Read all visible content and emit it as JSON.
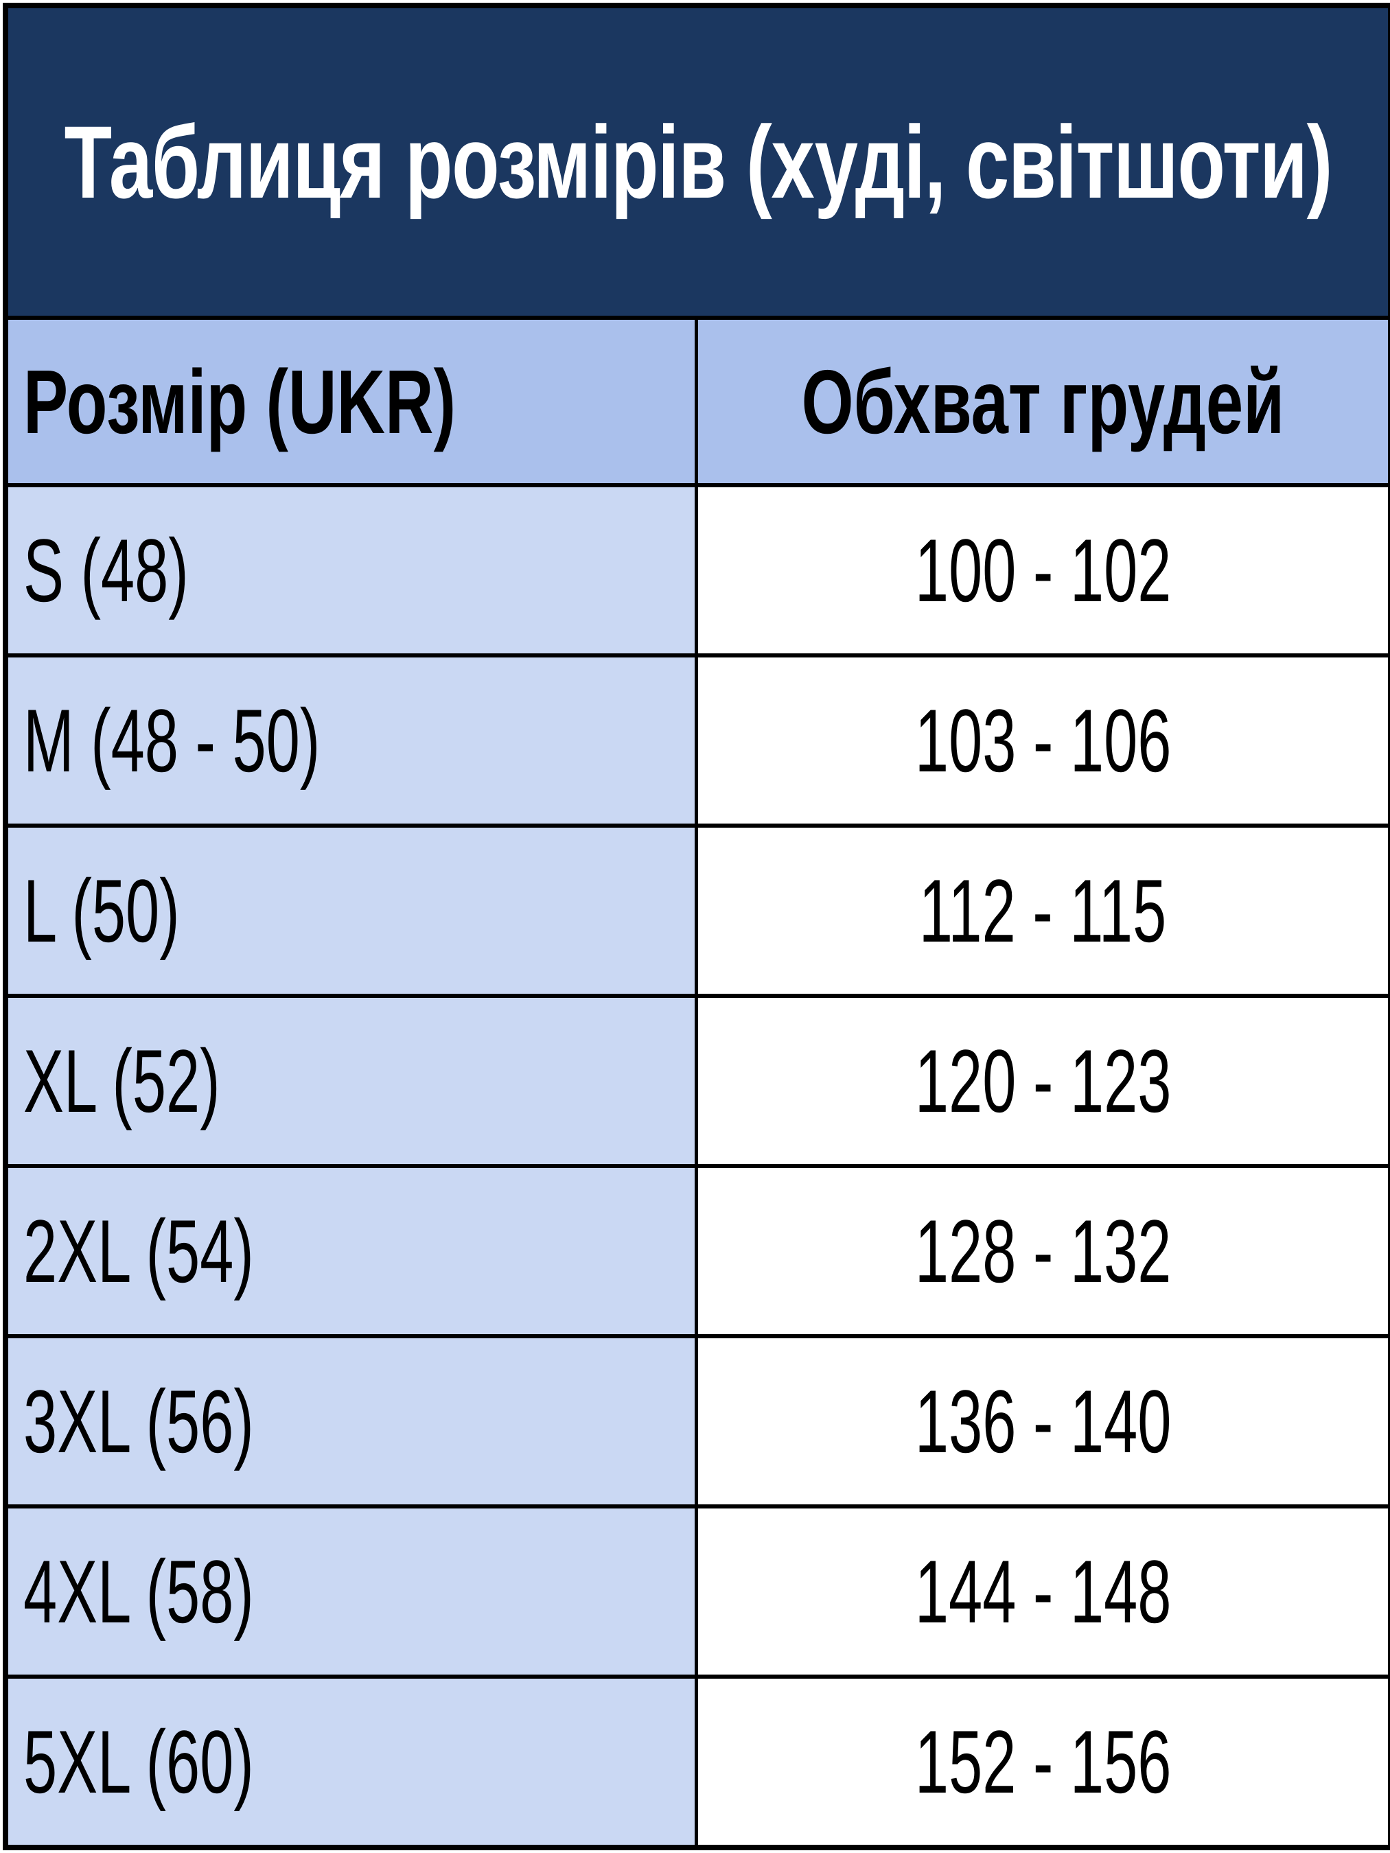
{
  "title": "Таблиця розмірів (худі, світшоти)",
  "headers": [
    "Розмір (UKR)",
    "Обхват грудей"
  ],
  "rows": [
    {
      "size": "S (48)",
      "chest": "100 - 102"
    },
    {
      "size": "M (48 - 50)",
      "chest": "103 - 106"
    },
    {
      "size": "L (50)",
      "chest": "112 - 115"
    },
    {
      "size": "XL (52)",
      "chest": "120 - 123"
    },
    {
      "size": "2XL (54)",
      "chest": "128 - 132"
    },
    {
      "size": "3XL (56)",
      "chest": "136 - 140"
    },
    {
      "size": "4XL (58)",
      "chest": "144 - 148"
    },
    {
      "size": "5XL (60)",
      "chest": "152 - 156"
    }
  ],
  "colors": {
    "title_bg": "#1b3760",
    "header_bg": "#aac0ec",
    "size_col_bg": "#cad8f3",
    "value_bg": "#ffffff",
    "border": "#000000"
  }
}
